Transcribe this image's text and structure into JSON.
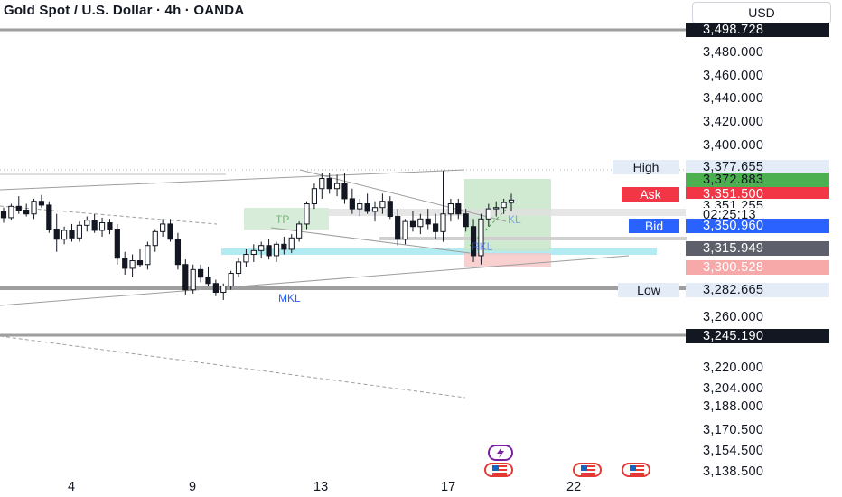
{
  "header": {
    "title": "Gold Spot / U.S. Dollar · 4h · OANDA",
    "currency": "USD"
  },
  "price_axis": {
    "ticks": [
      "3,480.000",
      "3,460.000",
      "3,440.000",
      "3,420.000",
      "3,400.000",
      "3,260.000",
      "3,220.000",
      "3,204.000",
      "3,188.000",
      "3,170.500",
      "3,154.500",
      "3,138.500"
    ]
  },
  "price_labels": {
    "top_line": "3,498.728",
    "high_value": "3,377.655",
    "green_target": "3,372.883",
    "ask_value": "3,351.500",
    "last_price": "3,351.255",
    "countdown": "02:25:13",
    "bid_value": "3,350.960",
    "grey_level": "3,315.949",
    "red_stop": "3,300.528",
    "low_value": "3,282.665",
    "bottom_line": "3,245.190"
  },
  "tags": {
    "high": "High",
    "ask": "Ask",
    "bid": "Bid",
    "low": "Low"
  },
  "x_axis": {
    "ticks": [
      "4",
      "9",
      "13",
      "17",
      "22"
    ]
  },
  "annotations": {
    "mkl": "MKL",
    "tp": "TP",
    "rkl": "RKL",
    "kl": "KL"
  },
  "events": {
    "flash_icon": "lightning-icon",
    "flag_icon": "us-flag-icon"
  },
  "colors": {
    "bull": "#131722",
    "bear": "#131722",
    "ask": "#f23645",
    "bid": "#2962ff",
    "target_green": "#4caf50",
    "stop_red": "#f7c4c4",
    "grey": "#5d606b",
    "zone_blue": "#b2ebf2",
    "zone_green": "#c8e6c9"
  },
  "chart_data": {
    "type": "candlestick",
    "symbol": "Gold Spot / U.S. Dollar",
    "timeframe": "4h",
    "source": "OANDA",
    "x_ticks": [
      "4",
      "9",
      "13",
      "17",
      "22"
    ],
    "y_range": [
      3130,
      3505
    ],
    "levels": {
      "top_line": 3498.728,
      "high": 3377.655,
      "target": 3372.883,
      "ask": 3351.5,
      "last": 3351.255,
      "bid": 3350.96,
      "grey": 3315.949,
      "stop": 3300.528,
      "low": 3282.665,
      "bottom_line": 3245.19
    },
    "candles": [
      [
        3342,
        3345,
        3333,
        3337
      ],
      [
        3337,
        3348,
        3335,
        3346
      ],
      [
        3346,
        3354,
        3340,
        3343
      ],
      [
        3343,
        3348,
        3338,
        3340
      ],
      [
        3340,
        3352,
        3336,
        3350
      ],
      [
        3350,
        3355,
        3345,
        3347
      ],
      [
        3347,
        3350,
        3325,
        3328
      ],
      [
        3328,
        3340,
        3310,
        3320
      ],
      [
        3320,
        3330,
        3316,
        3327
      ],
      [
        3327,
        3332,
        3318,
        3321
      ],
      [
        3321,
        3334,
        3318,
        3331
      ],
      [
        3331,
        3338,
        3326,
        3335
      ],
      [
        3335,
        3340,
        3325,
        3327
      ],
      [
        3327,
        3337,
        3322,
        3333
      ],
      [
        3333,
        3336,
        3324,
        3328
      ],
      [
        3328,
        3332,
        3300,
        3305
      ],
      [
        3305,
        3310,
        3292,
        3297
      ],
      [
        3297,
        3308,
        3290,
        3303
      ],
      [
        3303,
        3312,
        3298,
        3300
      ],
      [
        3300,
        3318,
        3296,
        3315
      ],
      [
        3315,
        3328,
        3310,
        3326
      ],
      [
        3326,
        3336,
        3322,
        3332
      ],
      [
        3332,
        3336,
        3318,
        3320
      ],
      [
        3320,
        3325,
        3296,
        3300
      ],
      [
        3300,
        3304,
        3276,
        3280
      ],
      [
        3280,
        3300,
        3277,
        3296
      ],
      [
        3296,
        3300,
        3286,
        3290
      ],
      [
        3290,
        3298,
        3283,
        3285
      ],
      [
        3285,
        3288,
        3275,
        3278
      ],
      [
        3278,
        3285,
        3272,
        3283
      ],
      [
        3283,
        3295,
        3280,
        3293
      ],
      [
        3293,
        3305,
        3290,
        3302
      ],
      [
        3302,
        3312,
        3298,
        3308
      ],
      [
        3308,
        3316,
        3302,
        3311
      ],
      [
        3311,
        3318,
        3305,
        3315
      ],
      [
        3315,
        3320,
        3304,
        3307
      ],
      [
        3307,
        3318,
        3302,
        3316
      ],
      [
        3316,
        3322,
        3308,
        3312
      ],
      [
        3312,
        3324,
        3309,
        3321
      ],
      [
        3321,
        3334,
        3318,
        3332
      ],
      [
        3332,
        3350,
        3328,
        3348
      ],
      [
        3348,
        3364,
        3344,
        3360
      ],
      [
        3360,
        3372,
        3352,
        3368
      ],
      [
        3368,
        3372,
        3356,
        3360
      ],
      [
        3360,
        3371,
        3354,
        3364
      ],
      [
        3364,
        3372,
        3348,
        3352
      ],
      [
        3352,
        3360,
        3340,
        3344
      ],
      [
        3344,
        3352,
        3338,
        3348
      ],
      [
        3348,
        3356,
        3340,
        3342
      ],
      [
        3342,
        3350,
        3334,
        3345
      ],
      [
        3345,
        3356,
        3340,
        3350
      ],
      [
        3350,
        3354,
        3336,
        3338
      ],
      [
        3338,
        3344,
        3315,
        3320
      ],
      [
        3320,
        3336,
        3316,
        3334
      ],
      [
        3334,
        3342,
        3326,
        3330
      ],
      [
        3330,
        3340,
        3324,
        3336
      ],
      [
        3336,
        3344,
        3328,
        3332
      ],
      [
        3332,
        3340,
        3320,
        3326
      ],
      [
        3326,
        3374,
        3318,
        3340
      ],
      [
        3340,
        3352,
        3334,
        3348
      ],
      [
        3348,
        3352,
        3336,
        3340
      ],
      [
        3340,
        3344,
        3326,
        3330
      ],
      [
        3330,
        3336,
        3302,
        3307
      ],
      [
        3307,
        3340,
        3300,
        3336
      ],
      [
        3336,
        3348,
        3330,
        3344
      ],
      [
        3344,
        3350,
        3338,
        3345
      ],
      [
        3345,
        3352,
        3340,
        3349
      ],
      [
        3349,
        3356,
        3342,
        3351
      ]
    ]
  }
}
